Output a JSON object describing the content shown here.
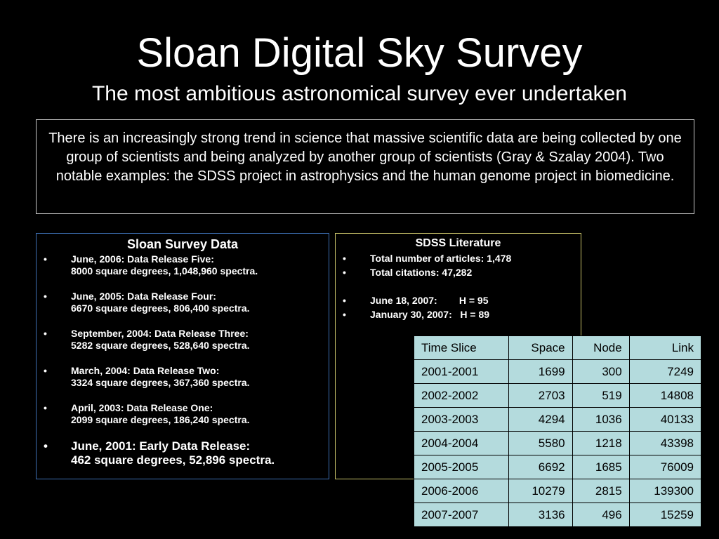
{
  "title": "Sloan Digital Sky Survey",
  "subtitle": "The most ambitious astronomical survey ever undertaken",
  "intro": "There is an increasingly strong trend in science that massive scientific data are being collected by one group of scientists and being analyzed by another group of scientists (Gray & Szalay 2004). Two notable examples: the SDSS project in astrophysics and the human genome project in biomedicine.",
  "survey_data": {
    "heading": "Sloan Survey Data",
    "releases": [
      {
        "line1": "June, 2006: Data Release Five:",
        "line2": "8000 square degrees, 1,048,960 spectra."
      },
      {
        "line1": "June, 2005: Data Release Four:",
        "line2": "6670 square degrees, 806,400 spectra."
      },
      {
        "line1": "September, 2004: Data Release Three:",
        "line2": "5282 square degrees, 528,640 spectra."
      },
      {
        "line1": "March, 2004: Data Release Two:",
        "line2": "3324 square degrees, 367,360 spectra."
      },
      {
        "line1": "April, 2003: Data Release One:",
        "line2": "2099 square degrees, 186,240 spectra."
      },
      {
        "line1": "June, 2001: Early Data Release:",
        "line2": "462 square degrees, 52,896 spectra."
      }
    ]
  },
  "literature": {
    "heading": "SDSS Literature",
    "items": [
      "Total number of articles: 1,478",
      "Total citations: 47,282",
      "June 18, 2007:        H = 95",
      "January 30, 2007:   H = 89"
    ]
  },
  "stats_table": {
    "headers": [
      "Time Slice",
      "Space",
      "Node",
      "Link"
    ],
    "rows": [
      [
        "2001-2001",
        "1699",
        "300",
        "7249"
      ],
      [
        "2002-2002",
        "2703",
        "519",
        "14808"
      ],
      [
        "2003-2003",
        "4294",
        "1036",
        "40133"
      ],
      [
        "2004-2004",
        "5580",
        "1218",
        "43398"
      ],
      [
        "2005-2005",
        "6692",
        "1685",
        "76009"
      ],
      [
        "2006-2006",
        "10279",
        "2815",
        "139300"
      ],
      [
        "2007-2007",
        "3136",
        "496",
        "15259"
      ]
    ]
  },
  "colors": {
    "background": "#000000",
    "data_panel_border": "#3d6fb3",
    "literature_panel_border": "#c9c36a",
    "table_fill": "#b4dbdd"
  },
  "bullet_char": "•"
}
